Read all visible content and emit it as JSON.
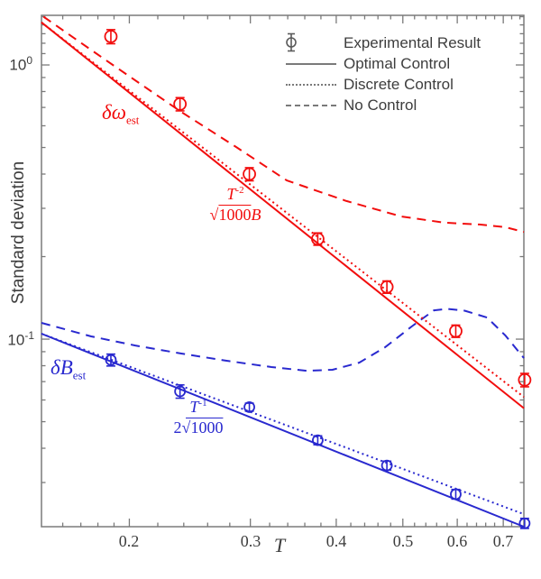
{
  "colors": {
    "red": "#f20d0d",
    "blue": "#2929cf",
    "axis": "#7a7a7a",
    "text": "#3d3d3d",
    "legend_glyph": "#5a5a5a"
  },
  "chart_data": {
    "type": "line",
    "title": "",
    "xlabel": "T",
    "ylabel": "Standard deviation",
    "x_scale": "log",
    "y_scale": "log",
    "x_range": [
      0.149,
      0.75
    ],
    "y_range": [
      0.0207,
      1.517
    ],
    "grid": false,
    "x_major_ticks": [
      0.2,
      0.3,
      0.4,
      0.5,
      0.6,
      0.7
    ],
    "x_major_tick_labels": [
      "0.2",
      "0.3",
      "0.4",
      "0.5",
      "0.6",
      "0.7"
    ],
    "x_minor_ticks": [
      0.16,
      0.17,
      0.18,
      0.19,
      0.22,
      0.24,
      0.26,
      0.28,
      0.32,
      0.34,
      0.36,
      0.38,
      0.42,
      0.44,
      0.46,
      0.48,
      0.52,
      0.54,
      0.56,
      0.58,
      0.62,
      0.64,
      0.66,
      0.68,
      0.72,
      0.74
    ],
    "y_major_ticks": [
      1,
      0.1
    ],
    "y_major_tick_labels": [
      {
        "base": "10",
        "exp": "0"
      },
      {
        "base": "10",
        "exp": "-1"
      }
    ],
    "y_minor_ticks": [
      1.5,
      1.4,
      1.3,
      1.2,
      1.1,
      0.9,
      0.8,
      0.7,
      0.6,
      0.5,
      0.4,
      0.3,
      0.2,
      0.09,
      0.08,
      0.07,
      0.06,
      0.05,
      0.04,
      0.03
    ],
    "legend": {
      "position": "top-right",
      "entries": [
        {
          "marker": "errorbar-circle",
          "label": "Experimental Result"
        },
        {
          "marker": "solid-line",
          "label": "Optimal Control"
        },
        {
          "marker": "dotted-line",
          "label": "Discrete Control"
        },
        {
          "marker": "dashed-line",
          "label": "No Control"
        }
      ]
    },
    "series": [
      {
        "name": "delta-omega-no-control",
        "color": "#f20d0d",
        "style": "dashed",
        "points": [
          [
            0.15,
            1.5
          ],
          [
            0.186,
            1.03
          ],
          [
            0.238,
            0.674
          ],
          [
            0.286,
            0.502
          ],
          [
            0.339,
            0.379
          ],
          [
            0.414,
            0.319
          ],
          [
            0.498,
            0.28
          ],
          [
            0.575,
            0.266
          ],
          [
            0.646,
            0.262
          ],
          [
            0.705,
            0.256
          ],
          [
            0.75,
            0.246
          ]
        ]
      },
      {
        "name": "delta-B-no-control",
        "color": "#2929cf",
        "style": "dashed",
        "points": [
          [
            0.149,
            0.1146
          ],
          [
            0.176,
            0.1023
          ],
          [
            0.204,
            0.0948
          ],
          [
            0.238,
            0.0886
          ],
          [
            0.277,
            0.0834
          ],
          [
            0.322,
            0.0791
          ],
          [
            0.362,
            0.0767
          ],
          [
            0.395,
            0.0773
          ],
          [
            0.432,
            0.0821
          ],
          [
            0.471,
            0.0934
          ],
          [
            0.515,
            0.1112
          ],
          [
            0.555,
            0.1274
          ],
          [
            0.58,
            0.1289
          ],
          [
            0.615,
            0.127
          ],
          [
            0.663,
            0.1199
          ],
          [
            0.705,
            0.1031
          ],
          [
            0.75,
            0.0853
          ]
        ]
      },
      {
        "name": "delta-omega-discrete-control",
        "color": "#f20d0d",
        "style": "dotted",
        "points": [
          [
            0.149,
            1.43
          ],
          [
            0.75,
            0.0615
          ]
        ]
      },
      {
        "name": "delta-B-discrete-control",
        "color": "#2929cf",
        "style": "dotted",
        "points": [
          [
            0.149,
            0.1047
          ],
          [
            0.75,
            0.023
          ]
        ]
      },
      {
        "name": "delta-omega-optimal-control",
        "color": "#f20d0d",
        "style": "solid",
        "points": [
          [
            0.149,
            1.43
          ],
          [
            0.75,
            0.056
          ]
        ]
      },
      {
        "name": "delta-B-optimal-control",
        "color": "#2929cf",
        "style": "solid",
        "points": [
          [
            0.149,
            0.1047
          ],
          [
            0.75,
            0.0207
          ]
        ]
      },
      {
        "name": "delta-omega-experimental",
        "color": "#f20d0d",
        "style": "marker",
        "marker_radius": 6.5,
        "x": [
          0.188,
          0.237,
          0.299,
          0.376,
          0.474,
          0.597,
          0.752
        ],
        "y": [
          1.27,
          0.72,
          0.4,
          0.232,
          0.155,
          0.107,
          0.071
        ],
        "yerr": [
          0.075,
          0.04,
          0.022,
          0.012,
          0.008,
          0.0055,
          0.004
        ]
      },
      {
        "name": "delta-B-experimental",
        "color": "#2929cf",
        "style": "marker",
        "marker_radius": 5.5,
        "x": [
          0.188,
          0.237,
          0.299,
          0.376,
          0.474,
          0.597,
          0.752
        ],
        "y": [
          0.084,
          0.0645,
          0.0565,
          0.0428,
          0.0346,
          0.0272,
          0.0213
        ],
        "yerr": [
          0.0042,
          0.0036,
          0.0019,
          0.0016,
          0.0013,
          0.0011,
          0.0009
        ]
      }
    ],
    "annotations": {
      "red_series_label": {
        "base": "δω",
        "sub": "est"
      },
      "blue_series_label": {
        "base": "δB",
        "sub": "est"
      },
      "red_formula": {
        "num_base": "T",
        "num_sup": "-2",
        "den_lead": "",
        "den_root": "1000",
        "den_tail": "B"
      },
      "blue_formula": {
        "num_base": "T",
        "num_sup": "-1",
        "den_lead": "2",
        "den_root": "1000",
        "den_tail": ""
      }
    }
  }
}
